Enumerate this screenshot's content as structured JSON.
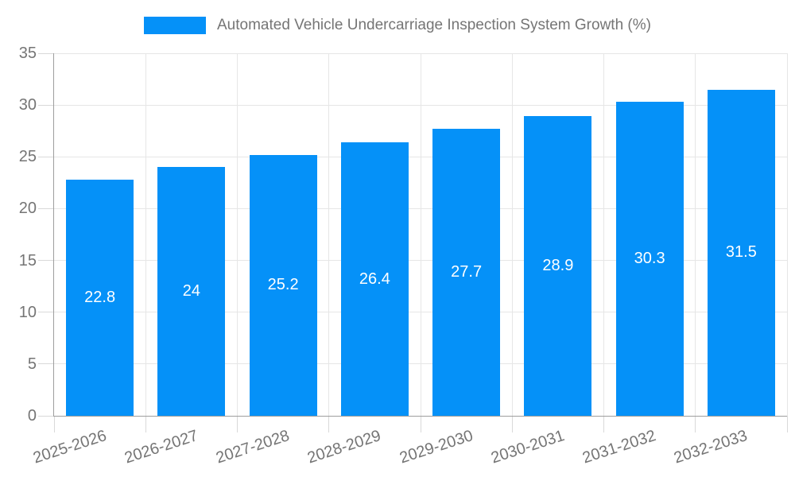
{
  "legend": {
    "label": "Automated Vehicle Undercarriage Inspection System Growth (%)"
  },
  "chart_data": {
    "type": "bar",
    "title": "Automated Vehicle Undercarriage Inspection System Growth (%)",
    "categories": [
      "2025-2026",
      "2026-2027",
      "2027-2028",
      "2028-2029",
      "2029-2030",
      "2030-2031",
      "2031-2032",
      "2032-2033"
    ],
    "values": [
      22.8,
      24,
      25.2,
      26.4,
      27.7,
      28.9,
      30.3,
      31.5
    ],
    "value_labels": [
      "22.8",
      "24",
      "25.2",
      "26.4",
      "27.7",
      "28.9",
      "30.3",
      "31.5"
    ],
    "yticks": [
      "0",
      "5",
      "10",
      "15",
      "20",
      "25",
      "30",
      "35"
    ],
    "ylim": [
      0,
      35
    ],
    "ytick_step": 5,
    "xlabel": "",
    "ylabel": "",
    "grid": true,
    "legend_position": "top",
    "value_labels_inside_bars": true
  },
  "colors": {
    "bar": "#0591f8",
    "grid": "#e6e6e6",
    "tick": "#d9d9d9",
    "axis": "#9e9e9e",
    "text": "#757575",
    "value_label": "#ffffff",
    "background": "#ffffff"
  }
}
